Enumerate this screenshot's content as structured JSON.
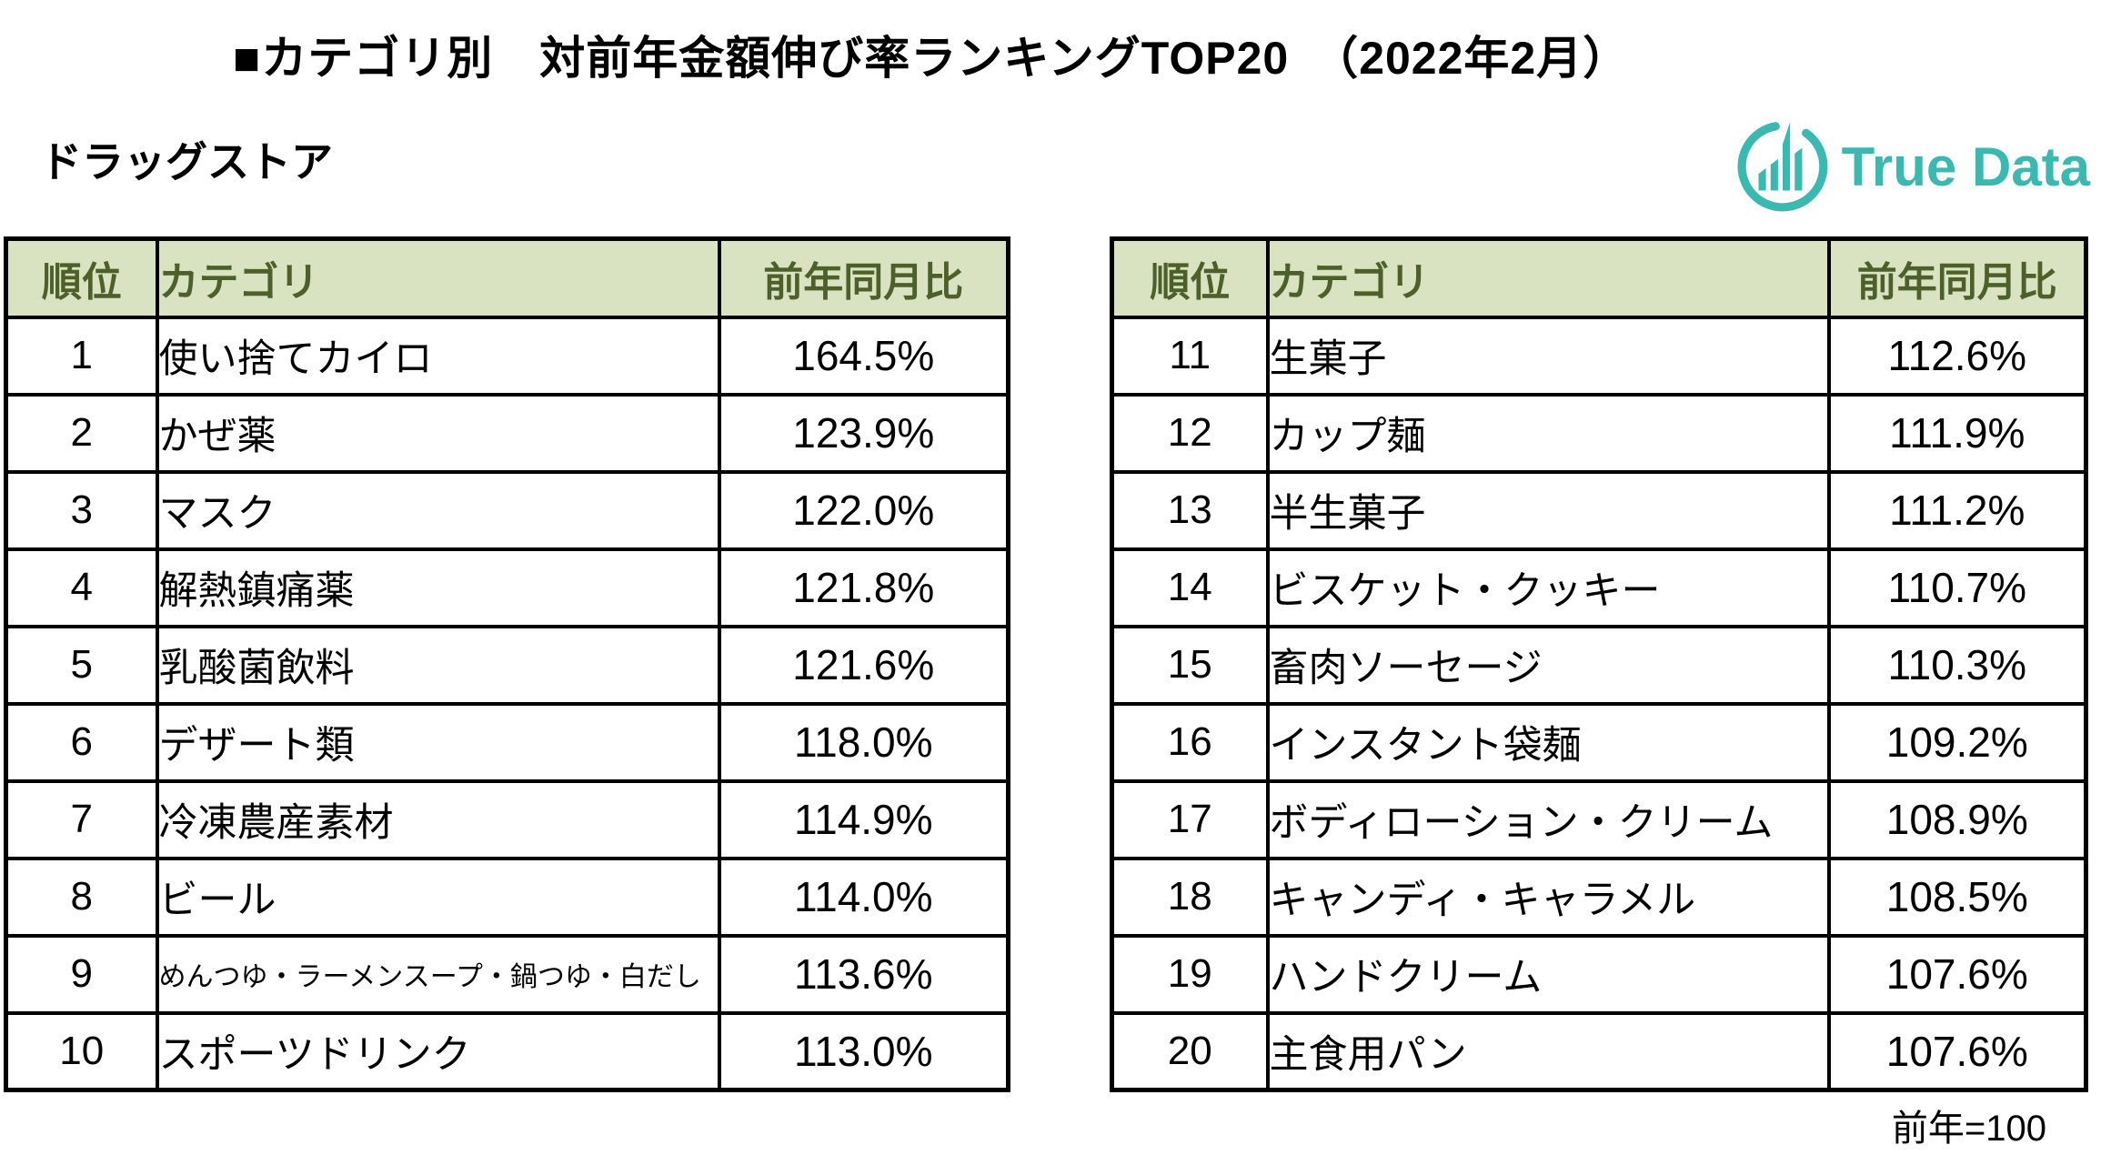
{
  "title": "■カテゴリ別　対前年金額伸び率ランキングTOP20　（2022年2月）",
  "subtitle": "ドラッグストア",
  "logo": {
    "text": "True Data",
    "icon": "bar-chart-circle-icon",
    "color": "#3BB9B1"
  },
  "colors": {
    "header_bg": "#D9E2C1",
    "header_text": "#4D6029",
    "border": "#000000",
    "accent_teal": "#3BB9B1"
  },
  "table_headers": {
    "rank": "順位",
    "category": "カテゴリ",
    "value": "前年同月比"
  },
  "tables": {
    "left": {
      "rows": [
        {
          "rank": "1",
          "category": "使い捨てカイロ",
          "value": "164.5%"
        },
        {
          "rank": "2",
          "category": "かぜ薬",
          "value": "123.9%"
        },
        {
          "rank": "3",
          "category": "マスク",
          "value": "122.0%"
        },
        {
          "rank": "4",
          "category": "解熱鎮痛薬",
          "value": "121.8%"
        },
        {
          "rank": "5",
          "category": "乳酸菌飲料",
          "value": "121.6%"
        },
        {
          "rank": "6",
          "category": "デザート類",
          "value": "118.0%"
        },
        {
          "rank": "7",
          "category": "冷凍農産素材",
          "value": "114.9%"
        },
        {
          "rank": "8",
          "category": "ビール",
          "value": "114.0%"
        },
        {
          "rank": "9",
          "category": "めんつゆ・ラーメンスープ・鍋つゆ・白だし",
          "value": "113.6%"
        },
        {
          "rank": "10",
          "category": "スポーツドリンク",
          "value": "113.0%"
        }
      ]
    },
    "right": {
      "rows": [
        {
          "rank": "11",
          "category": "生菓子",
          "value": "112.6%"
        },
        {
          "rank": "12",
          "category": "カップ麺",
          "value": "111.9%"
        },
        {
          "rank": "13",
          "category": "半生菓子",
          "value": "111.2%"
        },
        {
          "rank": "14",
          "category": "ビスケット・クッキー",
          "value": "110.7%"
        },
        {
          "rank": "15",
          "category": "畜肉ソーセージ",
          "value": "110.3%"
        },
        {
          "rank": "16",
          "category": "インスタント袋麺",
          "value": "109.2%"
        },
        {
          "rank": "17",
          "category": "ボディローション・クリーム",
          "value": "108.9%"
        },
        {
          "rank": "18",
          "category": "キャンディ・キャラメル",
          "value": "108.5%"
        },
        {
          "rank": "19",
          "category": "ハンドクリーム",
          "value": "107.6%"
        },
        {
          "rank": "20",
          "category": "主食用パン",
          "value": "107.6%"
        }
      ]
    }
  },
  "footnote": "前年=100"
}
